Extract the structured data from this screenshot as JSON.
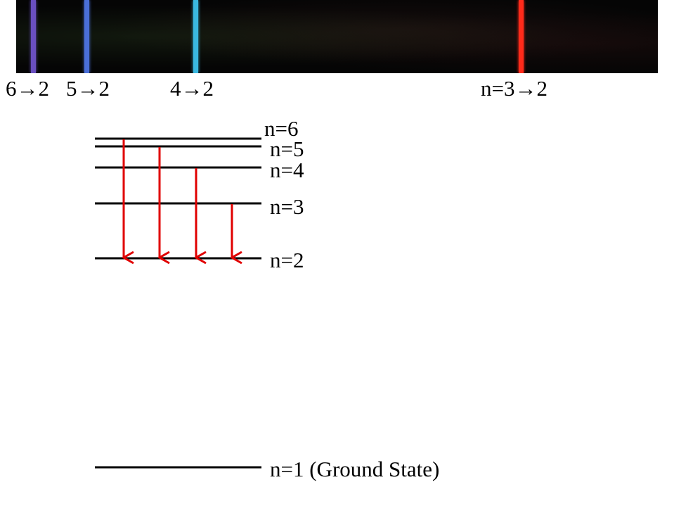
{
  "spectrum": {
    "lines": [
      {
        "id": "6-2",
        "color": "#6a4fc0"
      },
      {
        "id": "5-2",
        "color": "#4a6fd8"
      },
      {
        "id": "4-2",
        "color": "#3ab8e0"
      },
      {
        "id": "3-2",
        "color": "#ff2a1a"
      }
    ],
    "labels": {
      "l62": "6→2",
      "l52": "5→2",
      "l42": "4→2",
      "l32": "n=3→2"
    }
  },
  "levels": {
    "n6": "n=6",
    "n5": "n=5",
    "n4": "n=4",
    "n3": "n=3",
    "n2": "n=2",
    "n1": "n=1 (Ground State)"
  },
  "colors": {
    "arrow": "#e00000",
    "level_line": "#000000"
  }
}
